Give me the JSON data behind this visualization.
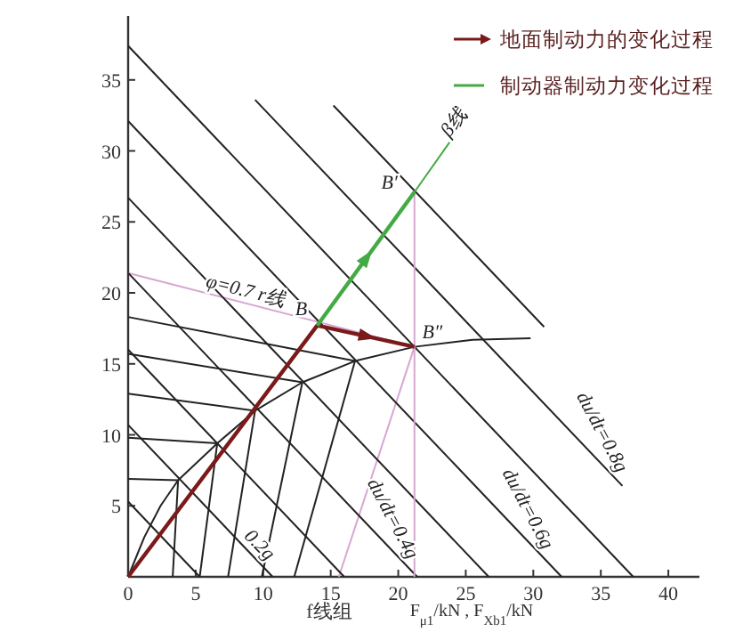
{
  "chart_data": {
    "type": "line",
    "xlabel": "F$_{μ1}$/kN , F$_{Xb1}$/kN",
    "xlim": [
      0,
      42.3
    ],
    "ylim": [
      0,
      39.5
    ],
    "xticks": [
      0,
      5,
      10,
      15,
      20,
      25,
      30,
      35,
      40
    ],
    "yticks": [
      5,
      10,
      15,
      20,
      25,
      30,
      35
    ],
    "legend": "top right",
    "marker": "none",
    "series": [
      {
        "color": "#222222",
        "x": [
          0,
          1.2,
          2.4,
          3.7,
          6.6,
          9.4,
          12.9,
          16.8,
          21.2,
          25.5,
          29.8
        ],
        "values": [
          0,
          2.8,
          5,
          6.8,
          9.4,
          11.7,
          13.7,
          15.2,
          16.2,
          16.7,
          16.8
        ]
      },
      {
        "color": "#222222",
        "x": [
          3.3,
          3.7
        ],
        "values": [
          0,
          6.8
        ]
      },
      {
        "color": "#222222",
        "x": [
          5.3,
          6.6
        ],
        "values": [
          0,
          9.4
        ]
      },
      {
        "color": "#222222",
        "x": [
          7.4,
          9.4
        ],
        "values": [
          0,
          11.7
        ]
      },
      {
        "color": "#222222",
        "x": [
          9.9,
          12.9
        ],
        "values": [
          0,
          13.7
        ]
      },
      {
        "color": "#222222",
        "x": [
          12.3,
          16.8
        ],
        "values": [
          0,
          15.2
        ]
      },
      {
        "color": "#d8a6d0",
        "x": [
          15.6,
          21.2
        ],
        "values": [
          0,
          16.2
        ]
      },
      {
        "color": "#222222",
        "x": [
          0,
          3.7
        ],
        "values": [
          6.9,
          6.8
        ]
      },
      {
        "color": "#222222",
        "x": [
          0,
          6.6
        ],
        "values": [
          9.8,
          9.4
        ]
      },
      {
        "color": "#222222",
        "x": [
          0,
          9.4
        ],
        "values": [
          12.9,
          11.7
        ]
      },
      {
        "color": "#222222",
        "x": [
          0,
          12.9
        ],
        "values": [
          15.7,
          13.7
        ]
      },
      {
        "color": "#222222",
        "x": [
          0,
          16.8
        ],
        "values": [
          18.3,
          15.2
        ]
      },
      {
        "color": "#d8a6d0",
        "x": [
          0,
          21.2
        ],
        "values": [
          21.4,
          16.2
        ]
      },
      {
        "color": "#222222",
        "x": [
          0,
          5.3
        ],
        "values": [
          5.3,
          0
        ]
      },
      {
        "color": "#222222",
        "x": [
          0,
          10.7
        ],
        "values": [
          10.7,
          0
        ]
      },
      {
        "color": "#222222",
        "x": [
          0,
          16
        ],
        "values": [
          16,
          0
        ]
      },
      {
        "color": "#222222",
        "x": [
          0,
          21.4
        ],
        "values": [
          21.4,
          0
        ]
      },
      {
        "color": "#222222",
        "x": [
          0,
          26.7
        ],
        "values": [
          26.7,
          0
        ]
      },
      {
        "color": "#222222",
        "x": [
          0,
          32.1
        ],
        "values": [
          32.1,
          0
        ]
      },
      {
        "color": "#222222",
        "x": [
          0,
          37.4
        ],
        "values": [
          37.4,
          0
        ]
      },
      {
        "color": "#222222",
        "x": [
          9.4,
          36.6
        ],
        "values": [
          33.6,
          6.4
        ]
      },
      {
        "color": "#222222",
        "x": [
          15.2,
          30.8
        ],
        "values": [
          33.2,
          17.6
        ]
      },
      {
        "color": "#d8a6d0",
        "x": [
          21.2,
          21.2
        ],
        "values": [
          0,
          27.1
        ]
      },
      {
        "color": "#44aa44",
        "x": [
          21.2,
          23.8
        ],
        "values": [
          27.1,
          30.6
        ]
      },
      {
        "name": "地面制动力的变化过程",
        "color": "#7a1a1a",
        "x": [
          0,
          14,
          21.2
        ],
        "values": [
          0,
          17.7,
          16.2
        ]
      },
      {
        "name": "制动器制动力变化过程",
        "color": "#44aa44",
        "x": [
          14,
          21.2
        ],
        "values": [
          17.7,
          27.1
        ]
      }
    ],
    "annotations": [
      {
        "text": "B",
        "x": 14,
        "y": 17.7
      },
      {
        "text": "B′",
        "x": 21.2,
        "y": 27.1
      },
      {
        "text": "B″",
        "x": 21.2,
        "y": 16.2
      },
      {
        "text": "β线",
        "x": 23.8,
        "y": 30.6
      },
      {
        "text": "φ=0.7 r线",
        "x": 8.6,
        "y": 19.25
      },
      {
        "text": "0.2g",
        "x": 8.5,
        "y": 2.2
      },
      {
        "text": "du/dt=0.4g",
        "x": 17.5,
        "y": 3.9
      },
      {
        "text": "du/dt=0.6g",
        "x": 27.5,
        "y": 4.6
      },
      {
        "text": "du/dt=0.8g",
        "x": 33,
        "y": 10
      },
      "f线组"
    ]
  }
}
